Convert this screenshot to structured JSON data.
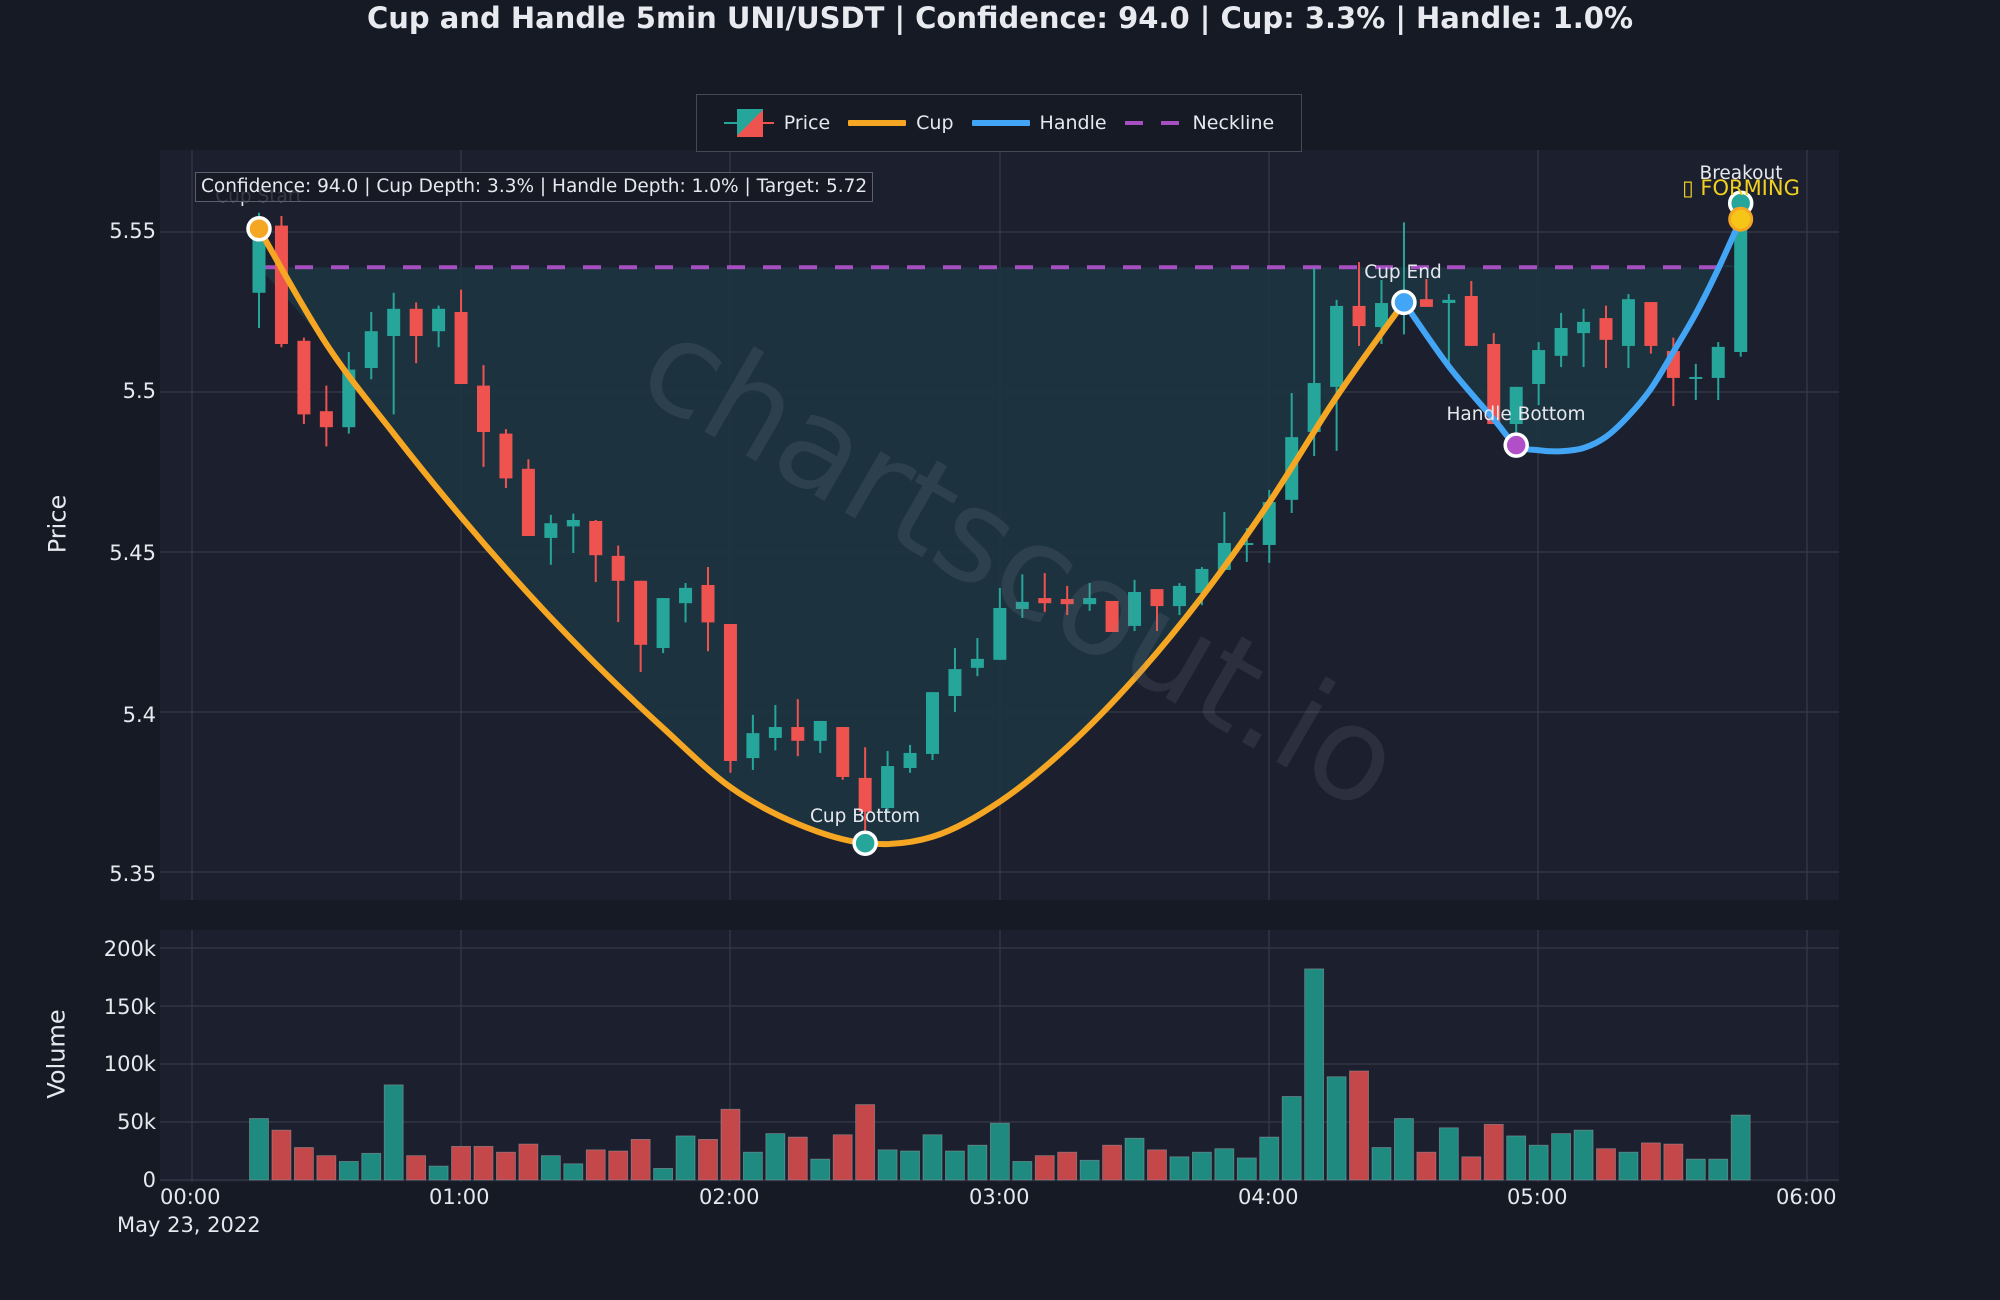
{
  "title": "Cup and Handle 5min UNI/USDT | Confidence: 94.0 | Cup: 3.3% | Handle: 1.0%",
  "legend": [
    {
      "label": "Price",
      "type": "candle"
    },
    {
      "label": "Cup",
      "type": "line",
      "color": "#f5a623"
    },
    {
      "label": "Handle",
      "type": "line",
      "color": "#42a5f5"
    },
    {
      "label": "Neckline",
      "type": "dash",
      "color": "#a64fc1"
    }
  ],
  "info_box": "Confidence: 94.0 | Cup Depth: 3.3% | Handle Depth: 1.0% | Target: 5.72",
  "annotations": {
    "cup_start": "Cup Start",
    "cup_bottom": "Cup Bottom",
    "cup_end": "Cup End",
    "handle_bottom": "Handle Bottom",
    "breakout": "Breakout",
    "status": "▯ FORMING"
  },
  "watermark": "chartscout.io",
  "axes": {
    "price_title": "Price",
    "volume_title": "Volume",
    "price_ticks": [
      "5.55",
      "5.5",
      "5.45",
      "5.4",
      "5.35"
    ],
    "volume_ticks": [
      "200k",
      "150k",
      "100k",
      "50k",
      "0"
    ],
    "x_ticks": [
      "00:00",
      "01:00",
      "02:00",
      "03:00",
      "04:00",
      "05:00",
      "06:00"
    ],
    "date_label": "May 23, 2022"
  },
  "colors": {
    "up": "#26a69a",
    "down": "#ef5350",
    "vol_up": "#1f8a7f",
    "vol_down": "#c44749",
    "cup": "#f5a623",
    "handle": "#42a5f5",
    "neckline": "#a64fc1",
    "fill": "#1e3440",
    "plot_bg": "#1c1f2d",
    "grid": "#363a48",
    "cup_start_marker": "#f5a623",
    "cup_bottom_marker": "#26a69a",
    "cup_end_marker": "#42a5f5",
    "handle_bottom_marker": "#b04fc8",
    "breakout_marker": "#26a69a",
    "forming_marker": "#f5c518"
  },
  "chart_data": [
    {
      "type": "candlestick",
      "title": "Cup and Handle 5min UNI/USDT | Confidence: 94.0 | Cup: 3.3% | Handle: 1.0%",
      "xlabel": "",
      "ylabel": "Price",
      "ylim": [
        5.345,
        5.575
      ],
      "x_start": "2022-05-23 00:15",
      "interval_minutes": 5,
      "x_ticks": [
        "00:00",
        "01:00",
        "02:00",
        "03:00",
        "04:00",
        "05:00",
        "06:00"
      ],
      "grid": true,
      "legend_position": "top-center",
      "ohlc": [
        [
          5.531,
          5.556,
          5.52,
          5.551
        ],
        [
          5.552,
          5.555,
          5.514,
          5.515
        ],
        [
          5.516,
          5.517,
          5.49,
          5.493
        ],
        [
          5.494,
          5.502,
          5.483,
          5.489
        ],
        [
          5.489,
          5.5125,
          5.487,
          5.507
        ],
        [
          5.5075,
          5.525,
          5.504,
          5.519
        ],
        [
          5.5175,
          5.531,
          5.493,
          5.526
        ],
        [
          5.526,
          5.528,
          5.509,
          5.5175
        ],
        [
          5.519,
          5.527,
          5.514,
          5.526
        ],
        [
          5.525,
          5.532,
          5.5025,
          5.5025
        ],
        [
          5.502,
          5.5084,
          5.4766,
          5.4875
        ],
        [
          5.487,
          5.4884,
          5.47,
          5.473
        ],
        [
          5.476,
          5.479,
          5.455,
          5.455
        ],
        [
          5.4544,
          5.4616,
          5.446,
          5.459
        ],
        [
          5.458,
          5.462,
          5.4497,
          5.46
        ],
        [
          5.4597,
          5.46,
          5.4406,
          5.449
        ],
        [
          5.4488,
          5.452,
          5.4281,
          5.441
        ],
        [
          5.441,
          5.441,
          5.4125,
          5.421
        ],
        [
          5.42,
          5.4356,
          5.4184,
          5.4356
        ],
        [
          5.434,
          5.4403,
          5.428,
          5.4388
        ],
        [
          5.4397,
          5.4453,
          5.419,
          5.428
        ],
        [
          5.4275,
          5.4275,
          5.381,
          5.3847
        ],
        [
          5.3856,
          5.3991,
          5.3819,
          5.3934
        ],
        [
          5.3919,
          5.4022,
          5.388,
          5.3953
        ],
        [
          5.3953,
          5.404,
          5.3862,
          5.391
        ],
        [
          5.391,
          5.3972,
          5.3872,
          5.3972
        ],
        [
          5.3953,
          5.3953,
          5.3788,
          5.3797
        ],
        [
          5.3794,
          5.389,
          5.3584,
          5.3688
        ],
        [
          5.37,
          5.3878,
          5.3688,
          5.3831
        ],
        [
          5.3825,
          5.3897,
          5.381,
          5.3872
        ],
        [
          5.3869,
          5.4062,
          5.385,
          5.4062
        ],
        [
          5.405,
          5.42,
          5.4,
          5.4134
        ],
        [
          5.4138,
          5.4231,
          5.4112,
          5.4166
        ],
        [
          5.4163,
          5.4387,
          5.4163,
          5.4325
        ],
        [
          5.4322,
          5.443,
          5.4294,
          5.4344
        ],
        [
          5.4356,
          5.4434,
          5.4313,
          5.434
        ],
        [
          5.4353,
          5.4394,
          5.4303,
          5.4337
        ],
        [
          5.4337,
          5.4403,
          5.4316,
          5.4356
        ],
        [
          5.4347,
          5.4347,
          5.425,
          5.425
        ],
        [
          5.4269,
          5.4413,
          5.4253,
          5.4375
        ],
        [
          5.4384,
          5.4384,
          5.4253,
          5.4331
        ],
        [
          5.4331,
          5.4403,
          5.4303,
          5.4394
        ],
        [
          5.4372,
          5.4453,
          5.4334,
          5.4447
        ],
        [
          5.4444,
          5.4625,
          5.4444,
          5.4528
        ],
        [
          5.4522,
          5.4575,
          5.4469,
          5.4528
        ],
        [
          5.4522,
          5.4694,
          5.4466,
          5.4656
        ],
        [
          5.4663,
          5.4997,
          5.4622,
          5.4859
        ],
        [
          5.4875,
          5.5388,
          5.48,
          5.5028
        ],
        [
          5.5016,
          5.5288,
          5.4816,
          5.5269
        ],
        [
          5.5269,
          5.5406,
          5.5144,
          5.5206
        ],
        [
          5.5203,
          5.535,
          5.515,
          5.5278
        ],
        [
          5.525,
          5.553,
          5.518,
          5.528
        ],
        [
          5.529,
          5.5353,
          5.5266,
          5.5266
        ],
        [
          5.5278,
          5.5306,
          5.5072,
          5.5288
        ],
        [
          5.53,
          5.5347,
          5.5144,
          5.5144
        ],
        [
          5.515,
          5.5184,
          5.49,
          5.49
        ],
        [
          5.49,
          5.5016,
          5.4834,
          5.5016
        ],
        [
          5.5025,
          5.5156,
          5.4959,
          5.5131
        ],
        [
          5.5113,
          5.5247,
          5.5078,
          5.52
        ],
        [
          5.5184,
          5.526,
          5.5078,
          5.5219
        ],
        [
          5.5231,
          5.527,
          5.5075,
          5.5163
        ],
        [
          5.5144,
          5.5306,
          5.5075,
          5.529
        ],
        [
          5.5281,
          5.5281,
          5.512,
          5.5144
        ],
        [
          5.5128,
          5.517,
          5.4956,
          5.5044
        ],
        [
          5.5047,
          5.5088,
          5.4975,
          5.5047
        ],
        [
          5.5044,
          5.5156,
          5.4975,
          5.5141
        ],
        [
          5.5125,
          5.56,
          5.511,
          5.5522
        ]
      ],
      "cup_curve": [
        [
          0,
          5.551
        ],
        [
          3,
          5.515
        ],
        [
          6,
          5.487
        ],
        [
          9,
          5.461
        ],
        [
          12,
          5.437
        ],
        [
          15,
          5.415
        ],
        [
          18,
          5.395
        ],
        [
          21,
          5.3765
        ],
        [
          24,
          5.365
        ],
        [
          27,
          5.359
        ],
        [
          30,
          5.361
        ],
        [
          33,
          5.372
        ],
        [
          36,
          5.389
        ],
        [
          39,
          5.4105
        ],
        [
          42,
          5.436
        ],
        [
          45,
          5.4655
        ],
        [
          48,
          5.4985
        ],
        [
          51,
          5.528
        ]
      ],
      "handle_curve": [
        [
          51,
          5.528
        ],
        [
          53,
          5.508
        ],
        [
          55,
          5.4915
        ],
        [
          56,
          5.4834
        ],
        [
          57,
          5.4818
        ],
        [
          58,
          5.4815
        ],
        [
          59,
          5.4825
        ],
        [
          60,
          5.486
        ],
        [
          61,
          5.4925
        ],
        [
          62,
          5.501
        ],
        [
          63,
          5.5125
        ],
        [
          64,
          5.5245
        ],
        [
          65,
          5.5385
        ],
        [
          66,
          5.554
        ]
      ],
      "neckline": {
        "price": 5.539,
        "from_index": 0,
        "to_index": 66
      },
      "points": {
        "cup_start": [
          0,
          5.551
        ],
        "cup_bottom": [
          27,
          5.359
        ],
        "cup_end": [
          51,
          5.528
        ],
        "handle_bottom": [
          56,
          5.4834
        ],
        "breakout": [
          66,
          5.559
        ],
        "forming": [
          66,
          5.554
        ]
      },
      "target": 5.72,
      "confidence": 94.0,
      "cup_depth_pct": 3.3,
      "handle_depth_pct": 1.0
    },
    {
      "type": "bar",
      "ylabel": "Volume",
      "ylim": [
        0,
        210000
      ],
      "y_ticks": [
        "0",
        "50k",
        "100k",
        "150k",
        "200k"
      ],
      "values_k": [
        53,
        43,
        28,
        21,
        16,
        23,
        82,
        21,
        12,
        29,
        29,
        24,
        31,
        21,
        14,
        26,
        25,
        35,
        10,
        38,
        35,
        61,
        24,
        40,
        37,
        18,
        39,
        65,
        26,
        25,
        39,
        25,
        30,
        49,
        16,
        21,
        24,
        17,
        30,
        36,
        26,
        20,
        24,
        27,
        19,
        37,
        72,
        182,
        89,
        94,
        28,
        53,
        24,
        45,
        20,
        48,
        38,
        30,
        40,
        43,
        27,
        24,
        32,
        31,
        18,
        18,
        56
      ],
      "direction": [
        "up",
        "down",
        "down",
        "down",
        "up",
        "up",
        "up",
        "down",
        "up",
        "down",
        "down",
        "down",
        "down",
        "up",
        "up",
        "down",
        "down",
        "down",
        "up",
        "up",
        "down",
        "down",
        "up",
        "up",
        "down",
        "up",
        "down",
        "down",
        "up",
        "up",
        "up",
        "up",
        "up",
        "up",
        "up",
        "down",
        "down",
        "up",
        "down",
        "up",
        "down",
        "up",
        "up",
        "up",
        "up",
        "up",
        "up",
        "up",
        "up",
        "down",
        "up",
        "up",
        "down",
        "up",
        "down",
        "down",
        "up",
        "up",
        "up",
        "up",
        "down",
        "up",
        "down",
        "down",
        "up",
        "up",
        "up"
      ]
    }
  ]
}
